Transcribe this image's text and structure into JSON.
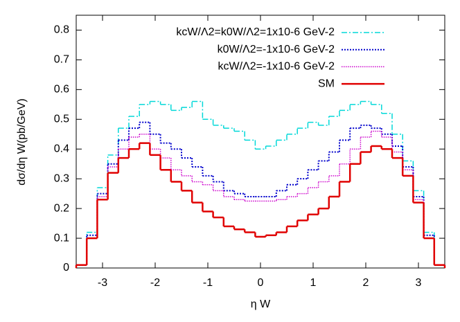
{
  "chart_data": {
    "type": "histogram",
    "xlabel": "η W",
    "ylabel": "dσ/dη W(pb/GeV)",
    "bins": [
      -3.5,
      -3.3,
      -3.1,
      -2.9,
      -2.7,
      -2.5,
      -2.3,
      -2.1,
      -1.9,
      -1.7,
      -1.5,
      -1.3,
      -1.1,
      -0.9,
      -0.7,
      -0.5,
      -0.3,
      -0.1,
      0.1,
      0.3,
      0.5,
      0.7,
      0.9,
      1.1,
      1.3,
      1.5,
      1.7,
      1.9,
      2.1,
      2.3,
      2.5,
      2.7,
      2.9,
      3.1,
      3.3,
      3.5
    ],
    "series": [
      {
        "name": "kcW/Λ2=k0W/Λ2=1x10-6 GeV-2",
        "color": "#00d8d8",
        "values": [
          0.01,
          0.12,
          0.27,
          0.38,
          0.47,
          0.51,
          0.55,
          0.56,
          0.55,
          0.53,
          0.54,
          0.56,
          0.5,
          0.48,
          0.47,
          0.46,
          0.43,
          0.4,
          0.41,
          0.43,
          0.45,
          0.47,
          0.49,
          0.48,
          0.51,
          0.53,
          0.55,
          0.56,
          0.55,
          0.52,
          0.45,
          0.36,
          0.26,
          0.12,
          0.01
        ]
      },
      {
        "name": "k0W/Λ2=-1x10-6 GeV-2",
        "color": "#0000cc",
        "values": [
          0.01,
          0.11,
          0.25,
          0.35,
          0.43,
          0.47,
          0.49,
          0.45,
          0.42,
          0.4,
          0.37,
          0.34,
          0.31,
          0.29,
          0.26,
          0.25,
          0.24,
          0.24,
          0.24,
          0.26,
          0.28,
          0.3,
          0.33,
          0.36,
          0.39,
          0.43,
          0.47,
          0.48,
          0.47,
          0.45,
          0.41,
          0.34,
          0.24,
          0.11,
          0.01
        ]
      },
      {
        "name": "kcW/Λ2=-1x10-6 GeV-2",
        "color": "#cc00cc",
        "values": [
          0.01,
          0.1,
          0.24,
          0.34,
          0.4,
          0.44,
          0.45,
          0.4,
          0.37,
          0.33,
          0.31,
          0.29,
          0.28,
          0.26,
          0.24,
          0.23,
          0.225,
          0.225,
          0.225,
          0.23,
          0.24,
          0.25,
          0.27,
          0.29,
          0.31,
          0.35,
          0.4,
          0.44,
          0.46,
          0.44,
          0.39,
          0.33,
          0.23,
          0.1,
          0.01
        ]
      },
      {
        "name": "SM",
        "color": "#e00000",
        "values": [
          0.01,
          0.1,
          0.23,
          0.32,
          0.37,
          0.4,
          0.42,
          0.38,
          0.33,
          0.29,
          0.26,
          0.22,
          0.19,
          0.17,
          0.14,
          0.13,
          0.12,
          0.105,
          0.11,
          0.12,
          0.14,
          0.16,
          0.18,
          0.2,
          0.24,
          0.29,
          0.35,
          0.39,
          0.41,
          0.4,
          0.37,
          0.31,
          0.22,
          0.1,
          0.01
        ]
      }
    ],
    "xlim": [
      -3.5,
      3.5
    ],
    "xticks": [
      -3,
      -2,
      -1,
      0,
      1,
      2,
      3
    ],
    "ylim": [
      0,
      0.85
    ],
    "yticks": [
      0,
      0.1,
      0.2,
      0.3,
      0.4,
      0.5,
      0.6,
      0.7,
      0.8
    ],
    "legend": "upper right"
  }
}
